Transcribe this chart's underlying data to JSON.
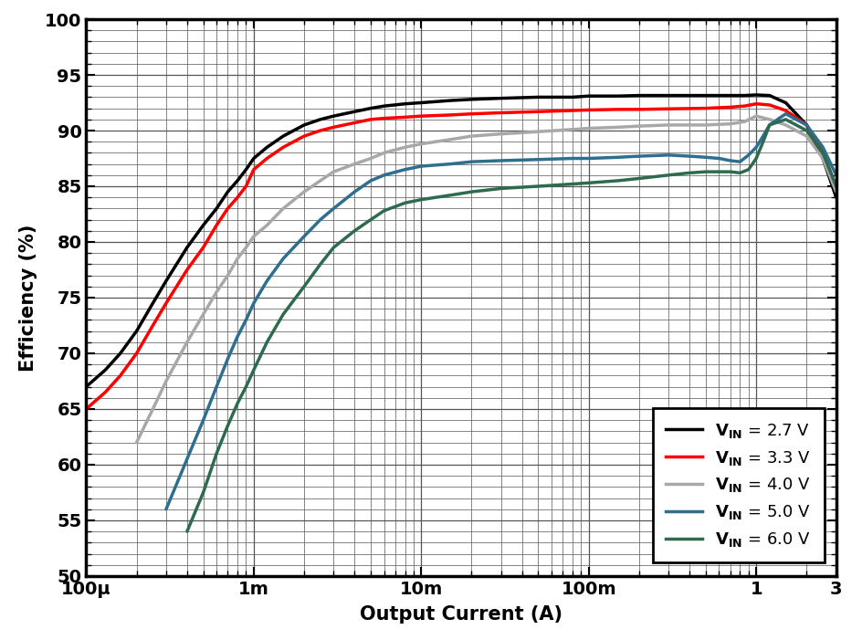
{
  "xlabel": "Output Current (A)",
  "ylabel": "Efficiency (%)",
  "xlim": [
    0.0001,
    3
  ],
  "ylim": [
    50,
    100
  ],
  "yticks": [
    50,
    55,
    60,
    65,
    70,
    75,
    80,
    85,
    90,
    95,
    100
  ],
  "xtick_labels": [
    "100μ",
    "1m",
    "10m",
    "100m",
    "1",
    "3"
  ],
  "xtick_positions": [
    0.0001,
    0.001,
    0.01,
    0.1,
    1.0,
    3.0
  ],
  "curves": [
    {
      "label": "V_IN = 2.7 V",
      "color": "#000000",
      "linewidth": 2.5,
      "x": [
        0.0001,
        0.00013,
        0.00016,
        0.0002,
        0.00025,
        0.0003,
        0.0004,
        0.0005,
        0.0006,
        0.0007,
        0.0008,
        0.0009,
        0.001,
        0.0012,
        0.0015,
        0.002,
        0.0025,
        0.003,
        0.004,
        0.005,
        0.006,
        0.008,
        0.01,
        0.015,
        0.02,
        0.03,
        0.05,
        0.08,
        0.1,
        0.15,
        0.2,
        0.3,
        0.5,
        0.7,
        0.85,
        1.0,
        1.2,
        1.5,
        2.0,
        2.5,
        3.0
      ],
      "y": [
        67.0,
        68.5,
        70.0,
        72.0,
        74.5,
        76.5,
        79.5,
        81.5,
        83.0,
        84.5,
        85.5,
        86.5,
        87.5,
        88.5,
        89.5,
        90.5,
        91.0,
        91.3,
        91.7,
        92.0,
        92.2,
        92.4,
        92.5,
        92.7,
        92.8,
        92.9,
        93.0,
        93.0,
        93.1,
        93.1,
        93.15,
        93.15,
        93.15,
        93.15,
        93.15,
        93.2,
        93.15,
        92.5,
        90.5,
        87.5,
        84.0
      ]
    },
    {
      "label": "V_IN = 3.3 V",
      "color": "#ff0000",
      "linewidth": 2.5,
      "x": [
        0.0001,
        0.00013,
        0.00016,
        0.0002,
        0.00025,
        0.0003,
        0.0004,
        0.0005,
        0.0006,
        0.0007,
        0.0008,
        0.0009,
        0.001,
        0.0012,
        0.0015,
        0.002,
        0.0025,
        0.003,
        0.004,
        0.005,
        0.006,
        0.008,
        0.01,
        0.015,
        0.02,
        0.03,
        0.05,
        0.08,
        0.1,
        0.15,
        0.2,
        0.3,
        0.5,
        0.7,
        0.85,
        1.0,
        1.2,
        1.5,
        2.0,
        2.5,
        3.0
      ],
      "y": [
        65.0,
        66.5,
        68.0,
        70.0,
        72.5,
        74.5,
        77.5,
        79.5,
        81.5,
        83.0,
        84.0,
        85.0,
        86.5,
        87.5,
        88.5,
        89.5,
        90.0,
        90.3,
        90.7,
        91.0,
        91.1,
        91.2,
        91.3,
        91.4,
        91.5,
        91.6,
        91.7,
        91.8,
        91.85,
        91.9,
        91.9,
        91.95,
        92.0,
        92.1,
        92.2,
        92.4,
        92.3,
        91.8,
        90.5,
        88.0,
        85.0
      ]
    },
    {
      "label": "V_IN = 4.0 V",
      "color": "#a8a8a8",
      "linewidth": 2.5,
      "x": [
        0.0002,
        0.00025,
        0.0003,
        0.0004,
        0.0005,
        0.0006,
        0.0007,
        0.0008,
        0.0009,
        0.001,
        0.0012,
        0.0015,
        0.002,
        0.0025,
        0.003,
        0.004,
        0.005,
        0.006,
        0.008,
        0.01,
        0.015,
        0.02,
        0.03,
        0.05,
        0.08,
        0.1,
        0.15,
        0.2,
        0.3,
        0.5,
        0.7,
        0.85,
        1.0,
        1.2,
        1.5,
        2.0,
        2.5,
        3.0
      ],
      "y": [
        62.0,
        65.0,
        67.5,
        71.0,
        73.5,
        75.5,
        77.0,
        78.5,
        79.5,
        80.5,
        81.5,
        83.0,
        84.5,
        85.5,
        86.3,
        87.0,
        87.5,
        88.0,
        88.5,
        88.8,
        89.2,
        89.5,
        89.7,
        89.9,
        90.1,
        90.2,
        90.3,
        90.4,
        90.5,
        90.5,
        90.6,
        90.8,
        91.3,
        91.0,
        90.5,
        89.5,
        87.5,
        84.5
      ]
    },
    {
      "label": "V_IN = 5.0 V",
      "color": "#2e6e8e",
      "linewidth": 2.5,
      "x": [
        0.0003,
        0.0004,
        0.0005,
        0.0006,
        0.0007,
        0.0008,
        0.0009,
        0.001,
        0.0012,
        0.0015,
        0.002,
        0.0025,
        0.003,
        0.004,
        0.005,
        0.006,
        0.008,
        0.01,
        0.015,
        0.02,
        0.03,
        0.05,
        0.08,
        0.1,
        0.15,
        0.2,
        0.3,
        0.4,
        0.5,
        0.6,
        0.7,
        0.8,
        0.9,
        1.0,
        1.1,
        1.2,
        1.5,
        2.0,
        2.5,
        3.0
      ],
      "y": [
        56.0,
        60.5,
        64.0,
        67.0,
        69.5,
        71.5,
        73.0,
        74.5,
        76.5,
        78.5,
        80.5,
        82.0,
        83.0,
        84.5,
        85.5,
        86.0,
        86.5,
        86.8,
        87.0,
        87.2,
        87.3,
        87.4,
        87.5,
        87.5,
        87.6,
        87.7,
        87.8,
        87.7,
        87.6,
        87.5,
        87.3,
        87.2,
        87.8,
        88.5,
        89.5,
        90.5,
        91.5,
        90.5,
        88.5,
        86.0
      ]
    },
    {
      "label": "V_IN = 6.0 V",
      "color": "#2d6b4f",
      "linewidth": 2.5,
      "x": [
        0.0004,
        0.0005,
        0.0006,
        0.0007,
        0.0008,
        0.0009,
        0.001,
        0.0012,
        0.0015,
        0.002,
        0.0025,
        0.003,
        0.004,
        0.005,
        0.006,
        0.008,
        0.01,
        0.015,
        0.02,
        0.03,
        0.05,
        0.08,
        0.1,
        0.15,
        0.2,
        0.3,
        0.4,
        0.5,
        0.6,
        0.7,
        0.8,
        0.9,
        1.0,
        1.1,
        1.2,
        1.5,
        2.0,
        2.5,
        3.0
      ],
      "y": [
        54.0,
        57.5,
        61.0,
        63.5,
        65.5,
        67.0,
        68.5,
        71.0,
        73.5,
        76.0,
        78.0,
        79.5,
        81.0,
        82.0,
        82.8,
        83.5,
        83.8,
        84.2,
        84.5,
        84.8,
        85.0,
        85.2,
        85.3,
        85.5,
        85.7,
        86.0,
        86.2,
        86.3,
        86.3,
        86.3,
        86.2,
        86.5,
        87.5,
        89.0,
        90.5,
        91.0,
        90.0,
        88.0,
        85.0
      ]
    }
  ],
  "grid_color": "#555555",
  "background_color": "#ffffff"
}
